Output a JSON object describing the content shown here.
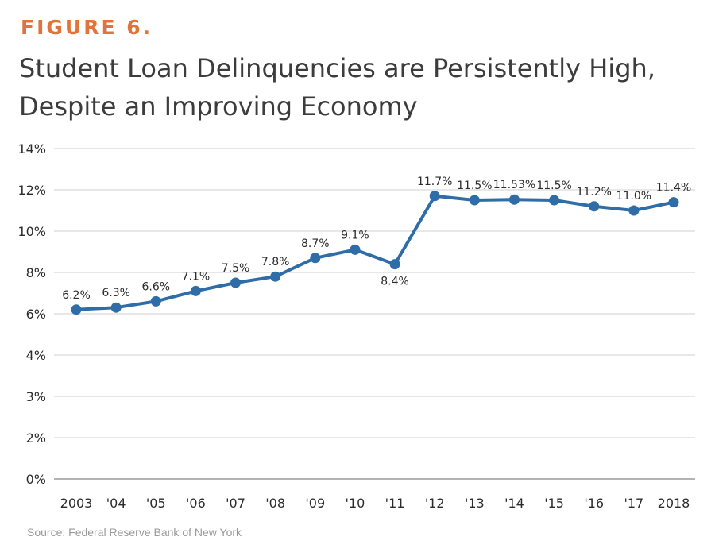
{
  "figure_label": "FIGURE 6.",
  "title_line1": "Student Loan Delinquencies are Persistently High,",
  "title_line2": "Despite an Improving Economy",
  "source": "Source: Federal Reserve Bank of New York",
  "colors": {
    "accent": "#e2733a",
    "line": "#2e6da8",
    "grid": "#cfcfcf",
    "title": "#3c3c3c"
  },
  "chart_data": {
    "type": "line",
    "title": "Student Loan Delinquencies are Persistently High, Despite an Improving Economy",
    "xlabel": "",
    "ylabel": "",
    "grid": true,
    "categories": [
      "2003",
      "'04",
      "'05",
      "'06",
      "'07",
      "'08",
      "'09",
      "'10",
      "'11",
      "'12",
      "'13",
      "'14",
      "'15",
      "'16",
      "'17",
      "2018"
    ],
    "y_ticks": [
      "0%",
      "2%",
      "3%",
      "4%",
      "6%",
      "8%",
      "10%",
      "12%",
      "14%"
    ],
    "series": [
      {
        "values": [
          6.2,
          6.3,
          6.6,
          7.1,
          7.5,
          7.8,
          8.7,
          9.1,
          8.4,
          11.7,
          11.5,
          11.53,
          11.5,
          11.2,
          11.0,
          11.4
        ],
        "labels": [
          "6.2%",
          "6.3%",
          "6.6%",
          "7.1%",
          "7.5%",
          "7.8%",
          "8.7%",
          "9.1%",
          "8.4%",
          "11.7%",
          "11.5%",
          "11.53%",
          "11.5%",
          "11.2%",
          "11.0%",
          "11.4%"
        ]
      }
    ]
  }
}
